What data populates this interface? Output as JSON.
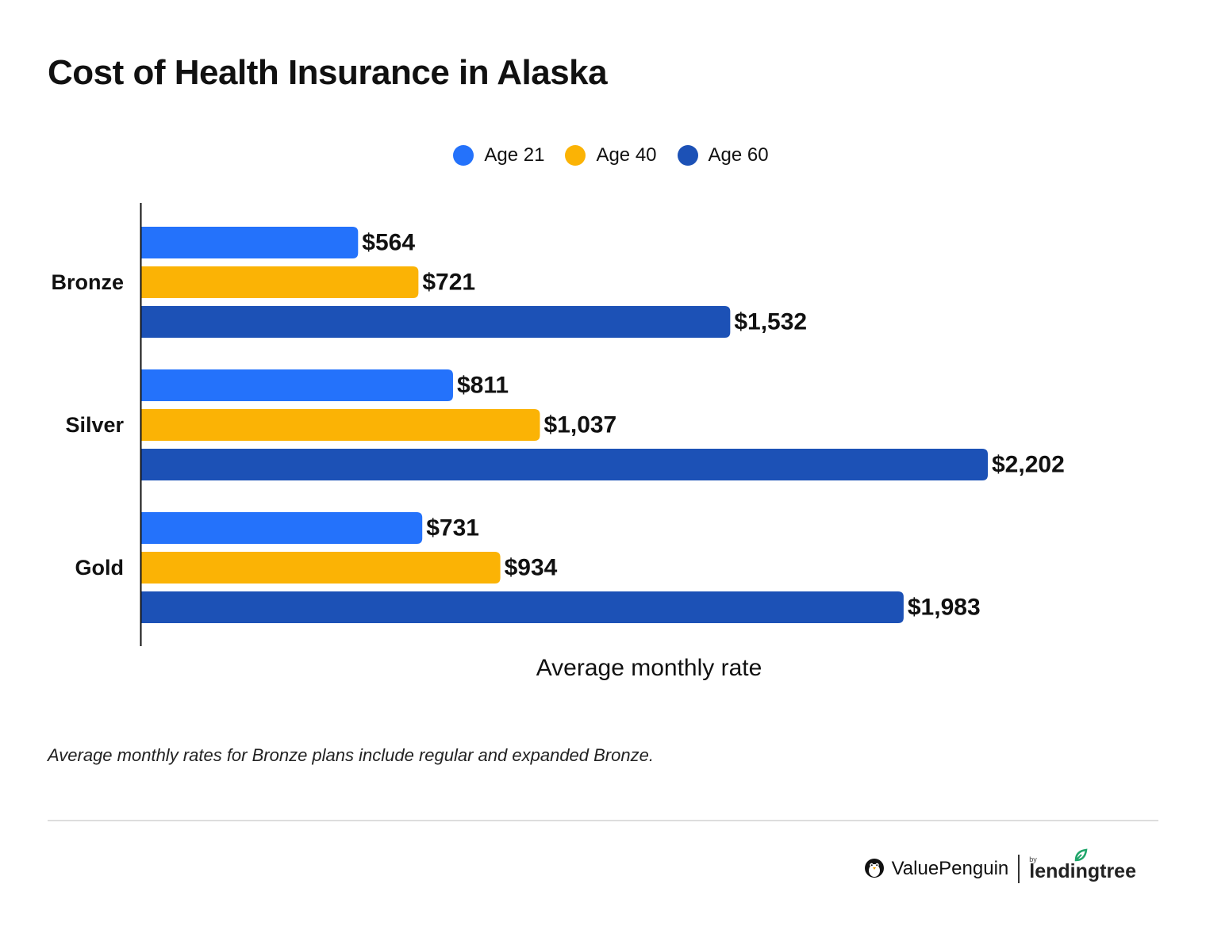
{
  "header": {
    "title": "Cost of Health Insurance in Alaska"
  },
  "legend": [
    {
      "label": "Age 21",
      "color": "#2472fb"
    },
    {
      "label": "Age 40",
      "color": "#fbb305"
    },
    {
      "label": "Age 60",
      "color": "#1c51b6"
    }
  ],
  "chart_data": {
    "type": "bar",
    "orientation": "horizontal",
    "title": "Cost of Health Insurance in Alaska",
    "xlabel": "Average monthly rate",
    "ylabel": "",
    "categories": [
      "Bronze",
      "Silver",
      "Gold"
    ],
    "series": [
      {
        "name": "Age 21",
        "color": "#2472fb",
        "values": [
          564,
          811,
          731
        ],
        "labels": [
          "$564",
          "$811",
          "$731"
        ]
      },
      {
        "name": "Age 40",
        "color": "#fbb305",
        "values": [
          721,
          1037,
          934
        ],
        "labels": [
          "$721",
          "$1,037",
          "$934"
        ]
      },
      {
        "name": "Age 60",
        "color": "#1c51b6",
        "values": [
          1532,
          2202,
          1983
        ],
        "labels": [
          "$1,532",
          "$2,202",
          "$1,983"
        ]
      }
    ],
    "xlim": [
      0,
      2202
    ],
    "grid": false,
    "legend_position": "top-center"
  },
  "footnote": "Average monthly rates for Bronze plans include regular and expanded Bronze.",
  "brand": {
    "name": "ValuePenguin",
    "by": "by",
    "partner": "lendingtree",
    "logo_icon": "penguin-icon",
    "partner_icon": "leaf-icon"
  }
}
